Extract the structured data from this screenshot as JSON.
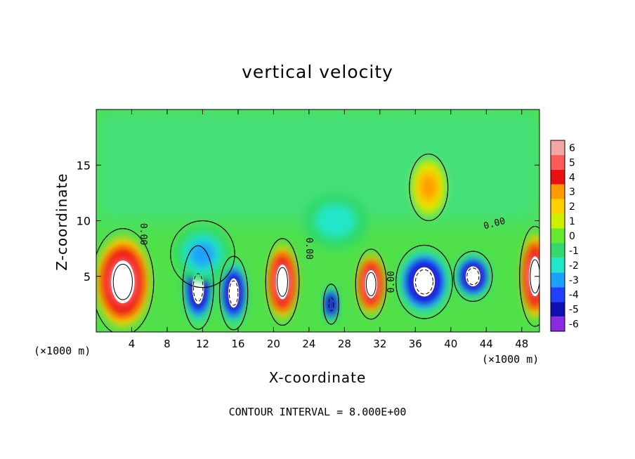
{
  "chart_data": {
    "type": "heatmap",
    "title": "vertical velocity",
    "xlabel": "X-coordinate",
    "ylabel": "Z-coordinate",
    "x_unit_left": "(×1000 m)",
    "x_unit_right": "(×1000 m)",
    "xlim": [
      0,
      50
    ],
    "ylim": [
      0,
      20
    ],
    "x_ticks": [
      4,
      8,
      12,
      16,
      20,
      24,
      28,
      32,
      36,
      40,
      44,
      48
    ],
    "y_ticks": [
      5,
      10,
      15
    ],
    "colorbar": {
      "ticks": [
        6,
        5,
        4,
        3,
        2,
        1,
        0,
        -1,
        -2,
        -3,
        -4,
        -5,
        -6
      ],
      "colors": [
        "#f4a6a6",
        "#ff5a5a",
        "#e81010",
        "#ff9a00",
        "#ffd000",
        "#ccf000",
        "#66e830",
        "#33d96a",
        "#22e6c8",
        "#1aa0ff",
        "#2040ff",
        "#1010b0",
        "#8a2be2"
      ]
    },
    "contour_labels": [
      "0.00",
      "0.00",
      "0.00",
      "0.00"
    ],
    "footer": "CONTOUR INTERVAL = 8.000E+00",
    "cells": [
      {
        "x": 3,
        "z": 4.5,
        "w": 2.4,
        "h": 3.2,
        "value": 6
      },
      {
        "x": 11.5,
        "z": 4,
        "w": 1.2,
        "h": 2.5,
        "value": -6
      },
      {
        "x": 15.5,
        "z": 3.5,
        "w": 1.1,
        "h": 2.2,
        "value": -6
      },
      {
        "x": 21,
        "z": 4.5,
        "w": 1.3,
        "h": 2.6,
        "value": 6
      },
      {
        "x": 26.5,
        "z": 2.5,
        "w": 0.6,
        "h": 1.2,
        "value": -5
      },
      {
        "x": 31,
        "z": 4.3,
        "w": 1.2,
        "h": 2.1,
        "value": 6
      },
      {
        "x": 37,
        "z": 4.5,
        "w": 2.2,
        "h": 2.2,
        "value": -6
      },
      {
        "x": 42.5,
        "z": 5,
        "w": 1.5,
        "h": 1.5,
        "value": -6
      },
      {
        "x": 49.5,
        "z": 5,
        "w": 1.2,
        "h": 3,
        "value": 6
      },
      {
        "x": 37.5,
        "z": 13,
        "w": 1.5,
        "h": 2,
        "value": 3
      },
      {
        "x": 27,
        "z": 10,
        "w": 3,
        "h": 2,
        "value": -2
      },
      {
        "x": 12,
        "z": 7,
        "w": 2.5,
        "h": 2,
        "value": -3
      }
    ]
  }
}
